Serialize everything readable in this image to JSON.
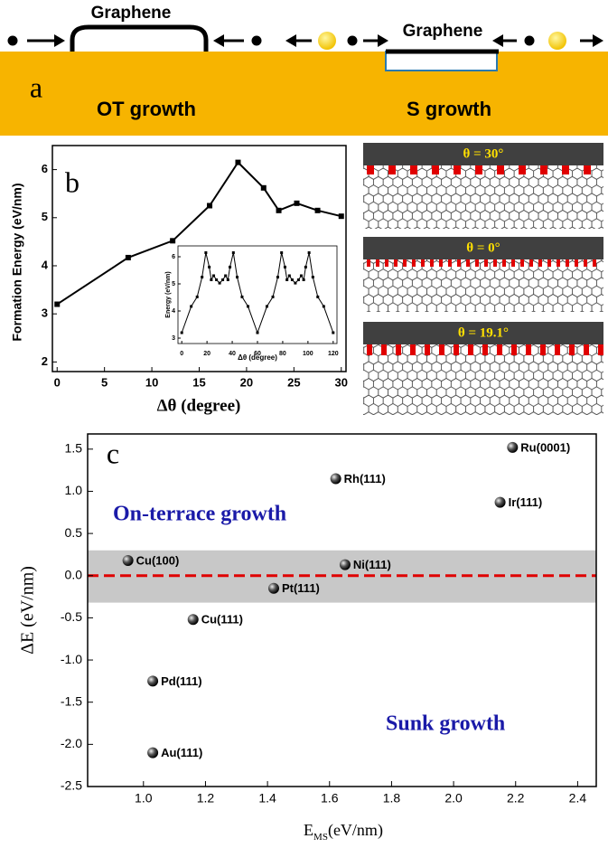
{
  "panel_a": {
    "label": "a",
    "left_title": "Graphene",
    "right_title": "Graphene",
    "left_caption": "OT growth",
    "right_caption": "S growth"
  },
  "lattice_panels": [
    {
      "label": "θ = 30°"
    },
    {
      "label": "θ = 0°"
    },
    {
      "label": "θ = 19.1°"
    }
  ],
  "chart_data": [
    {
      "type": "line",
      "panel_label": "b",
      "x_label": "Δθ (degree)",
      "y_label": "Formation Energy (eV/nm)",
      "x": [
        0,
        7.5,
        12.2,
        16.1,
        19.1,
        21.8,
        23.4,
        25.3,
        27.5,
        30
      ],
      "values": [
        3.2,
        4.17,
        4.52,
        5.25,
        6.15,
        5.62,
        5.15,
        5.3,
        5.15,
        5.03
      ],
      "color": "#000000",
      "xlim": [
        -0.5,
        30.5
      ],
      "ylim": [
        1.8,
        6.5
      ],
      "xticks": [
        0,
        5,
        10,
        15,
        20,
        25,
        30
      ],
      "yticks": [
        2,
        3,
        4,
        5,
        6
      ]
    },
    {
      "type": "line",
      "x_label": "Δθ (degree)",
      "y_label": "Energy (eV/nm)",
      "x": [
        0,
        7.5,
        12.2,
        16.1,
        19.1,
        21.8,
        23.4,
        25.3,
        27.5,
        30,
        32.5,
        34.7,
        36.6,
        38.2,
        40.9,
        43.9,
        47.8,
        52.5,
        60,
        67.5,
        72.2,
        76.1,
        79.1,
        81.8,
        83.4,
        85.3,
        87.5,
        90,
        92.5,
        94.7,
        96.6,
        98.2,
        100.9,
        103.9,
        107.8,
        112.5,
        120
      ],
      "values": [
        3.2,
        4.17,
        4.52,
        5.25,
        6.15,
        5.62,
        5.15,
        5.3,
        5.15,
        5.03,
        5.15,
        5.3,
        5.15,
        5.62,
        6.15,
        5.25,
        4.52,
        4.17,
        3.2,
        4.17,
        4.52,
        5.25,
        6.15,
        5.62,
        5.15,
        5.3,
        5.15,
        5.03,
        5.15,
        5.3,
        5.15,
        5.62,
        6.15,
        5.25,
        4.52,
        4.17,
        3.2
      ],
      "color": "#000000",
      "xlim": [
        -3,
        123
      ],
      "ylim": [
        2.8,
        6.4
      ],
      "xticks": [
        0,
        20,
        40,
        60,
        80,
        100,
        120
      ],
      "yticks": [
        3,
        4,
        5,
        6
      ]
    },
    {
      "type": "scatter",
      "panel_label": "c",
      "x_label": {
        "main": "E",
        "sub": "MS",
        "unit": "(eV/nm)"
      },
      "y_label": "ΔE (eV/nm)",
      "point_labels": [
        "Cu(100)",
        "Rh(111)",
        "Ru(0001)",
        "Ir(111)",
        "Ni(111)",
        "Pt(111)",
        "Cu(111)",
        "Pd(111)",
        "Au(111)"
      ],
      "x": [
        0.95,
        1.62,
        2.19,
        2.15,
        1.65,
        1.42,
        1.16,
        1.03,
        1.03
      ],
      "values": [
        0.18,
        1.15,
        1.52,
        0.87,
        0.13,
        -0.15,
        -0.52,
        -1.25,
        -2.1
      ],
      "annotations": [
        "On-terrace growth",
        "Sunk growth"
      ],
      "band": [
        -0.32,
        0.3
      ],
      "reference_line": 0,
      "xlim": [
        0.82,
        2.46
      ],
      "ylim": [
        -2.5,
        1.68
      ],
      "xticks": [
        {
          "value": 1,
          "label": "1.0"
        },
        1.2,
        1.4,
        1.6,
        1.8,
        {
          "value": 2,
          "label": "2.0"
        },
        2.2,
        2.4
      ],
      "yticks": [
        -2.5,
        {
          "value": -2,
          "label": "-2.0"
        },
        -1.5,
        {
          "value": -1,
          "label": "-1.0"
        },
        -0.5,
        {
          "value": 0,
          "label": "0.0"
        },
        0.5,
        {
          "value": 1,
          "label": "1.0"
        },
        1.5
      ]
    }
  ]
}
